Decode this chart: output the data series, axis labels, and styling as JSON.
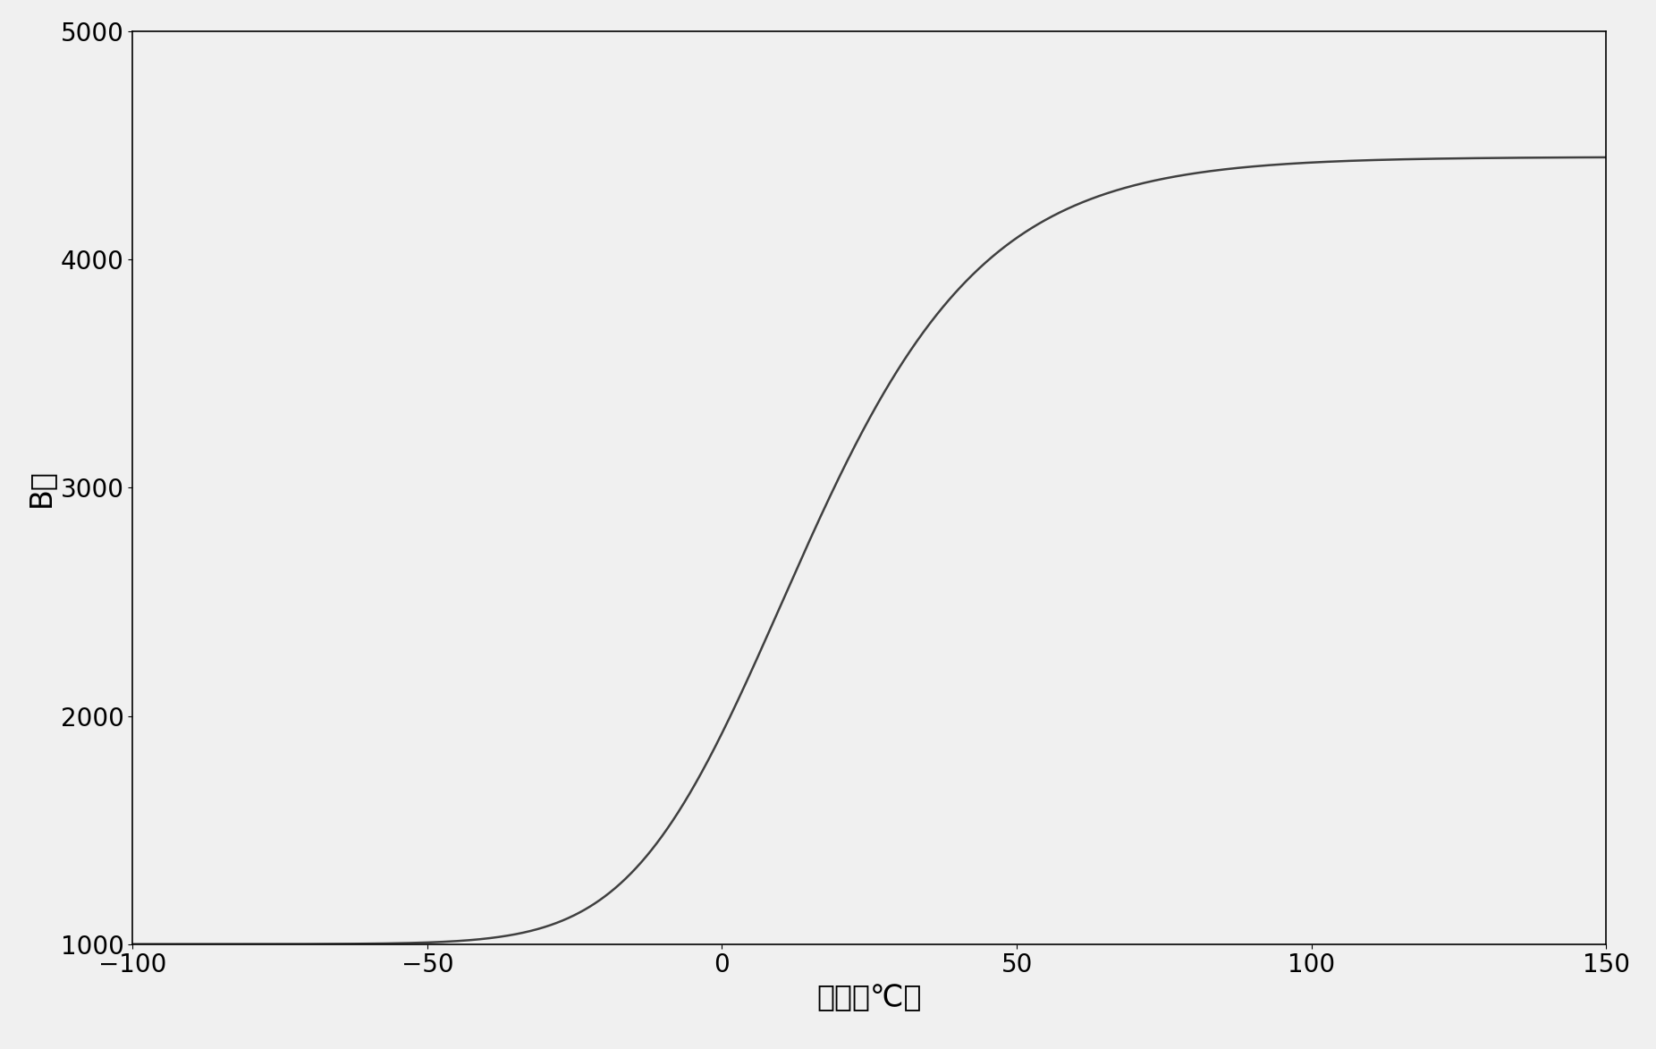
{
  "xlabel": "温度（℃）",
  "ylabel": "B値",
  "xlim": [
    -100,
    150
  ],
  "ylim": [
    1000,
    5000
  ],
  "xticks": [
    -100,
    -50,
    0,
    50,
    100,
    150
  ],
  "yticks": [
    1000,
    2000,
    3000,
    4000,
    5000
  ],
  "line_color": "#404040",
  "line_width": 1.8,
  "background_color": "#f0f0f0",
  "font_size_label": 24,
  "font_size_tick": 20,
  "curve_params": {
    "B_min": 1000,
    "B_max": 4450,
    "inflection": 10,
    "steepness": 0.055,
    "asymmetry": 0.4
  }
}
